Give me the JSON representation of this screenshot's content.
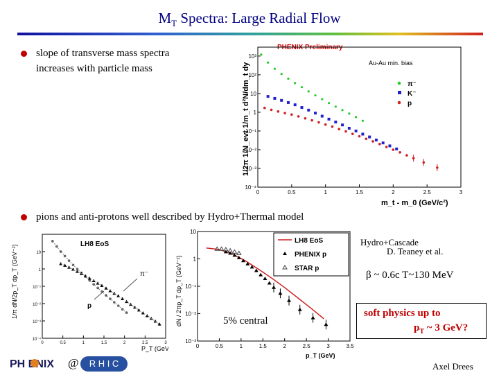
{
  "slide": {
    "title_main": "M",
    "title_sub": "T",
    "title_rest": " Spectra: Large Radial Flow",
    "bullet1_line1": "slope of  transverse mass spectra",
    "bullet1_line2": "increases with particle mass",
    "bullet2": "pions and anti-protons well  described by  Hydro+Thermal model",
    "hydro_cascade": "Hydro+Cascade",
    "teaney": "D. Teaney et al.",
    "beta_note": "β ~ 0.6c  T~130 MeV",
    "central_label": "5% central",
    "soft_line1": "soft physics up to",
    "soft_line2_pre": "p",
    "soft_line2_sub": "T",
    "soft_line2_post": " ~ 3 GeV?",
    "author": "Axel Drees",
    "logo_phenix": "PH ENIX",
    "logo_at": "@",
    "logo_rhic": "R H I C"
  },
  "colors": {
    "title": "#000080",
    "bullet": "#c00000",
    "pion": "#22cc22",
    "kaon": "#2222cc",
    "proton": "#cc2222",
    "hydro": "#cc2222"
  },
  "chart_data": [
    {
      "type": "scatter",
      "banner": "PHENIX Preliminary",
      "subtitle": "Au-Au min. bias",
      "xlabel": "m_t - m_0 (GeV/c²)",
      "ylabel": "1/2π 1/N_evt 1/m_t d²N/dm_t dy",
      "y_scale": "log",
      "xlim": [
        0,
        3
      ],
      "ylim": [
        0.0001,
        3000
      ],
      "xticks": [
        "0",
        "0.5",
        "1",
        "1.5",
        "2",
        "2.5",
        "3"
      ],
      "yticks": [
        "10⁻⁴",
        "10⁻³",
        "10⁻²",
        "10⁻¹",
        "1",
        "10",
        "10²",
        "10³"
      ],
      "legend": "right",
      "series": [
        {
          "name": "π⁻",
          "color": "#22cc22",
          "x": [
            0.05,
            0.15,
            0.25,
            0.35,
            0.45,
            0.55,
            0.65,
            0.75,
            0.85,
            0.95,
            1.05,
            1.15,
            1.25,
            1.35,
            1.45,
            1.55
          ],
          "y": [
            1200,
            450,
            210,
            110,
            62,
            36,
            22,
            13,
            8,
            5,
            3.1,
            2,
            1.3,
            0.85,
            0.55,
            0.35
          ]
        },
        {
          "name": "K⁻",
          "color": "#2222cc",
          "x": [
            0.15,
            0.25,
            0.35,
            0.45,
            0.55,
            0.65,
            0.75,
            0.85,
            0.95,
            1.05,
            1.15,
            1.25,
            1.35,
            1.45,
            1.55,
            1.65,
            1.75,
            1.85,
            1.95,
            2.05
          ],
          "y": [
            7,
            5.5,
            4.3,
            3.3,
            2.5,
            1.8,
            1.3,
            0.9,
            0.62,
            0.43,
            0.3,
            0.21,
            0.14,
            0.1,
            0.068,
            0.048,
            0.033,
            0.023,
            0.016,
            0.011
          ]
        },
        {
          "name": "p",
          "color": "#cc2222",
          "x": [
            0.1,
            0.2,
            0.3,
            0.4,
            0.5,
            0.6,
            0.7,
            0.8,
            0.9,
            1.0,
            1.1,
            1.2,
            1.3,
            1.4,
            1.5,
            1.6,
            1.7,
            1.8,
            1.9,
            2.0,
            2.1,
            2.2,
            2.3,
            2.45,
            2.65
          ],
          "y": [
            1.7,
            1.35,
            1.1,
            0.9,
            0.75,
            0.6,
            0.47,
            0.37,
            0.29,
            0.22,
            0.17,
            0.125,
            0.095,
            0.07,
            0.052,
            0.038,
            0.028,
            0.02,
            0.014,
            0.01,
            0.0072,
            0.005,
            0.0035,
            0.0021,
            0.0011
          ]
        }
      ]
    },
    {
      "type": "scatter",
      "label": "LH8 EoS",
      "xlabel": "P_T (GeV)",
      "ylabel": "1/π dN/2p_T dp_T (GeV⁻²)",
      "y_scale": "log",
      "xlim": [
        0,
        3
      ],
      "ylim": [
        0.0001,
        100
      ],
      "xticks": [
        "0",
        "0.5",
        "1",
        "1.5",
        "2",
        "2.5",
        "3"
      ],
      "yticks": [
        "10⁻⁴",
        "10⁻³",
        "10⁻²",
        "10⁻¹",
        "1",
        "10"
      ],
      "annotations": [
        "π⁻",
        "p"
      ],
      "series": [
        {
          "name": "π⁻",
          "x": [
            0.25,
            0.35,
            0.45,
            0.55,
            0.65,
            0.75,
            0.85,
            0.95,
            1.05,
            1.15,
            1.25,
            1.35,
            1.45,
            1.55,
            1.65,
            1.75,
            1.85,
            1.95,
            2.05
          ],
          "y": [
            40,
            20,
            10,
            5.5,
            3,
            1.7,
            1,
            0.6,
            0.36,
            0.22,
            0.13,
            0.08,
            0.05,
            0.03,
            0.019,
            0.012,
            0.0075,
            0.0047,
            0.003
          ]
        },
        {
          "name": "p",
          "x": [
            0.45,
            0.55,
            0.65,
            0.75,
            0.85,
            0.95,
            1.05,
            1.15,
            1.25,
            1.35,
            1.45,
            1.55,
            1.65,
            1.75,
            1.85,
            1.95,
            2.05,
            2.15,
            2.25,
            2.35,
            2.45,
            2.55,
            2.65,
            2.75,
            2.85
          ],
          "y": [
            2,
            1.6,
            1.25,
            0.95,
            0.72,
            0.53,
            0.4,
            0.29,
            0.21,
            0.15,
            0.11,
            0.078,
            0.055,
            0.039,
            0.028,
            0.019,
            0.013,
            0.009,
            0.0062,
            0.0042,
            0.0029,
            0.002,
            0.0014,
            0.00095,
            0.00065
          ]
        }
      ]
    },
    {
      "type": "line",
      "xlabel": "p_T (GeV)",
      "ylabel": "dN / 2πp_T dp_T (GeV⁻²)",
      "y_scale": "log",
      "xlim": [
        0,
        3.5
      ],
      "ylim": [
        0.001,
        10
      ],
      "xticks": [
        "0",
        "0.5",
        "1",
        "1.5",
        "2",
        "2.5",
        "3",
        "3.5"
      ],
      "yticks": [
        "10⁻³",
        "10⁻²",
        "10⁻¹",
        "1",
        "10"
      ],
      "legend": "top-right",
      "series": [
        {
          "name": "LH8 EoS",
          "color": "#cc2222",
          "x": [
            0.2,
            0.5,
            0.8,
            1.1,
            1.4,
            1.7,
            2.0,
            2.3,
            2.6,
            2.9
          ],
          "y": [
            2.5,
            2.2,
            1.5,
            0.85,
            0.42,
            0.2,
            0.09,
            0.038,
            0.016,
            0.0065
          ]
        },
        {
          "name": "PHENIX p",
          "x": [
            0.65,
            0.75,
            0.85,
            0.95,
            1.05,
            1.15,
            1.25,
            1.35,
            1.45,
            1.55,
            1.65,
            1.75,
            1.9,
            2.1,
            2.35,
            2.65,
            2.95
          ],
          "y": [
            1.8,
            1.6,
            1.35,
            1.1,
            0.85,
            0.65,
            0.5,
            0.37,
            0.26,
            0.19,
            0.13,
            0.09,
            0.055,
            0.03,
            0.014,
            0.007,
            0.004
          ]
        },
        {
          "name": "STAR p",
          "x": [
            0.45,
            0.55,
            0.65,
            0.75,
            0.85,
            0.95
          ],
          "y": [
            2.3,
            2.3,
            2.2,
            2.0,
            1.8,
            1.6
          ]
        }
      ]
    }
  ]
}
